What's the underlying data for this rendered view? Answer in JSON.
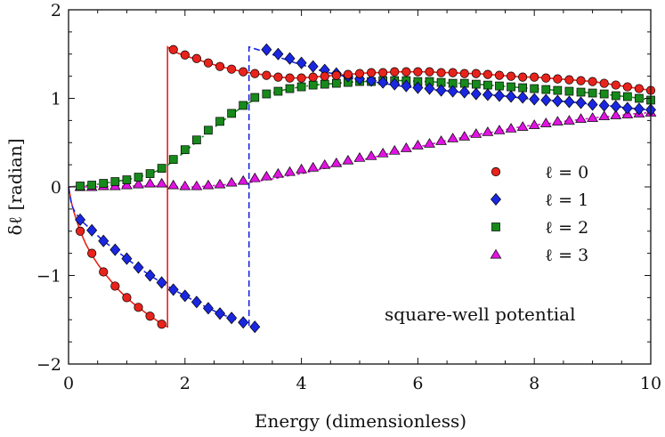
{
  "chart_data": {
    "type": "scatter",
    "xlabel": "Energy (dimensionless)",
    "ylabel": "δℓ [radian]",
    "xlim": [
      0,
      10
    ],
    "ylim": [
      -2,
      2
    ],
    "x_ticks": [
      "0",
      "2",
      "4",
      "6",
      "8",
      "10"
    ],
    "y_ticks": [
      "−2",
      "−1",
      "0",
      "1",
      "2"
    ],
    "grid": false,
    "legend_position": "right",
    "annotation": "square-well potential",
    "series": [
      {
        "name": "ℓ = 0",
        "marker": "circle",
        "color": "#e8231c",
        "line_style": "solid",
        "x": [
          0.2,
          0.4,
          0.6,
          0.8,
          1.0,
          1.2,
          1.4,
          1.6,
          1.8,
          2.0,
          2.2,
          2.4,
          2.6,
          2.8,
          3.0,
          3.2,
          3.4,
          3.6,
          3.8,
          4.0,
          4.2,
          4.4,
          4.6,
          4.8,
          5.0,
          5.2,
          5.4,
          5.6,
          5.8,
          6.0,
          6.2,
          6.4,
          6.6,
          6.8,
          7.0,
          7.2,
          7.4,
          7.6,
          7.8,
          8.0,
          8.2,
          8.4,
          8.6,
          8.8,
          9.0,
          9.2,
          9.4,
          9.6,
          9.8,
          10.0
        ],
        "y": [
          -0.5,
          -0.75,
          -0.96,
          -1.12,
          -1.25,
          -1.36,
          -1.46,
          -1.55,
          1.55,
          1.49,
          1.45,
          1.4,
          1.36,
          1.33,
          1.3,
          1.28,
          1.26,
          1.24,
          1.23,
          1.23,
          1.24,
          1.25,
          1.26,
          1.27,
          1.28,
          1.29,
          1.29,
          1.3,
          1.3,
          1.3,
          1.3,
          1.29,
          1.29,
          1.28,
          1.28,
          1.27,
          1.26,
          1.25,
          1.24,
          1.24,
          1.23,
          1.22,
          1.21,
          1.2,
          1.19,
          1.17,
          1.15,
          1.13,
          1.11,
          1.09
        ],
        "curve_x": [
          0,
          0.05,
          0.1,
          0.2,
          0.3,
          0.4,
          0.5,
          0.6,
          0.7,
          0.8,
          0.9,
          1.0,
          1.1,
          1.2,
          1.3,
          1.4,
          1.5,
          1.6,
          1.7,
          1.7,
          1.75,
          1.8,
          2.0,
          2.2,
          2.4,
          2.6,
          2.8,
          3.0,
          3.2,
          3.4,
          3.6,
          3.8,
          4.0,
          4.2,
          4.4,
          4.6,
          4.8,
          5.0,
          5.2,
          5.4,
          5.6,
          5.8,
          6.0,
          6.2,
          6.4,
          6.6,
          6.8,
          7.0,
          7.2,
          7.4,
          7.6,
          7.8,
          8.0,
          8.2,
          8.4,
          8.6,
          8.8,
          9.0,
          9.2,
          9.4,
          9.6,
          9.8,
          10.0
        ],
        "curve_y": [
          0,
          -0.18,
          -0.3,
          -0.5,
          -0.65,
          -0.77,
          -0.87,
          -0.96,
          -1.04,
          -1.12,
          -1.19,
          -1.25,
          -1.31,
          -1.36,
          -1.41,
          -1.46,
          -1.5,
          -1.55,
          -1.58,
          1.58,
          1.56,
          1.53,
          1.48,
          1.44,
          1.4,
          1.36,
          1.33,
          1.3,
          1.28,
          1.26,
          1.24,
          1.23,
          1.23,
          1.24,
          1.25,
          1.26,
          1.27,
          1.28,
          1.29,
          1.29,
          1.3,
          1.3,
          1.3,
          1.3,
          1.29,
          1.29,
          1.28,
          1.28,
          1.27,
          1.26,
          1.25,
          1.24,
          1.24,
          1.23,
          1.22,
          1.21,
          1.2,
          1.19,
          1.17,
          1.15,
          1.13,
          1.11,
          1.09
        ]
      },
      {
        "name": "ℓ = 1",
        "marker": "diamond",
        "color": "#1a27e0",
        "line_style": "dashed",
        "x": [
          0.2,
          0.4,
          0.6,
          0.8,
          1.0,
          1.2,
          1.4,
          1.6,
          1.8,
          2.0,
          2.2,
          2.4,
          2.6,
          2.8,
          3.0,
          3.2,
          3.4,
          3.6,
          3.8,
          4.0,
          4.2,
          4.4,
          4.6,
          4.8,
          5.0,
          5.2,
          5.4,
          5.6,
          5.8,
          6.0,
          6.2,
          6.4,
          6.6,
          6.8,
          7.0,
          7.2,
          7.4,
          7.6,
          7.8,
          8.0,
          8.2,
          8.4,
          8.6,
          8.8,
          9.0,
          9.2,
          9.4,
          9.6,
          9.8,
          10.0
        ],
        "y": [
          -0.37,
          -0.49,
          -0.61,
          -0.71,
          -0.81,
          -0.91,
          -1.0,
          -1.08,
          -1.16,
          -1.23,
          -1.3,
          -1.37,
          -1.43,
          -1.48,
          -1.53,
          -1.58,
          1.55,
          1.5,
          1.45,
          1.4,
          1.36,
          1.32,
          1.28,
          1.25,
          1.22,
          1.2,
          1.18,
          1.16,
          1.14,
          1.12,
          1.11,
          1.09,
          1.08,
          1.07,
          1.05,
          1.04,
          1.03,
          1.02,
          1.01,
          0.99,
          0.98,
          0.97,
          0.96,
          0.95,
          0.93,
          0.92,
          0.91,
          0.89,
          0.88,
          0.87
        ],
        "curve_x": [
          0,
          0.05,
          0.1,
          0.2,
          0.4,
          0.6,
          0.8,
          1.0,
          1.2,
          1.4,
          1.6,
          1.8,
          2.0,
          2.2,
          2.4,
          2.6,
          2.8,
          3.0,
          3.1,
          3.1,
          3.2,
          3.4,
          3.6,
          3.8,
          4.0,
          4.2,
          4.4,
          4.6,
          4.8,
          5.0,
          5.2,
          5.4,
          5.6,
          5.8,
          6.0,
          6.2,
          6.4,
          6.6,
          6.8,
          7.0,
          7.2,
          7.4,
          7.6,
          7.8,
          8.0,
          8.2,
          8.4,
          8.6,
          8.8,
          9.0,
          9.2,
          9.4,
          9.6,
          9.8,
          10.0
        ],
        "curve_y": [
          0,
          -0.2,
          -0.27,
          -0.37,
          -0.49,
          -0.61,
          -0.71,
          -0.81,
          -0.91,
          -1.0,
          -1.08,
          -1.16,
          -1.23,
          -1.3,
          -1.37,
          -1.43,
          -1.48,
          -1.53,
          -1.56,
          1.58,
          1.56,
          1.52,
          1.47,
          1.42,
          1.38,
          1.34,
          1.3,
          1.27,
          1.24,
          1.21,
          1.19,
          1.17,
          1.15,
          1.13,
          1.12,
          1.1,
          1.09,
          1.08,
          1.06,
          1.05,
          1.04,
          1.03,
          1.02,
          1.0,
          0.99,
          0.98,
          0.97,
          0.96,
          0.95,
          0.93,
          0.92,
          0.91,
          0.89,
          0.88,
          0.87
        ]
      },
      {
        "name": "ℓ = 2",
        "marker": "square",
        "color": "#178a1b",
        "line_style": "dashdot",
        "x": [
          0.2,
          0.4,
          0.6,
          0.8,
          1.0,
          1.2,
          1.4,
          1.6,
          1.8,
          2.0,
          2.2,
          2.4,
          2.6,
          2.8,
          3.0,
          3.2,
          3.4,
          3.6,
          3.8,
          4.0,
          4.2,
          4.4,
          4.6,
          4.8,
          5.0,
          5.2,
          5.4,
          5.6,
          5.8,
          6.0,
          6.2,
          6.4,
          6.6,
          6.8,
          7.0,
          7.2,
          7.4,
          7.6,
          7.8,
          8.0,
          8.2,
          8.4,
          8.6,
          8.8,
          9.0,
          9.2,
          9.4,
          9.6,
          9.8,
          10.0
        ],
        "y": [
          0.01,
          0.02,
          0.04,
          0.06,
          0.08,
          0.11,
          0.15,
          0.21,
          0.31,
          0.42,
          0.53,
          0.64,
          0.74,
          0.83,
          0.92,
          1.01,
          1.05,
          1.08,
          1.11,
          1.13,
          1.15,
          1.16,
          1.17,
          1.18,
          1.19,
          1.19,
          1.2,
          1.2,
          1.2,
          1.19,
          1.19,
          1.18,
          1.17,
          1.17,
          1.16,
          1.15,
          1.14,
          1.13,
          1.12,
          1.11,
          1.1,
          1.09,
          1.08,
          1.07,
          1.06,
          1.05,
          1.03,
          1.02,
          1.0,
          0.98
        ],
        "curve_x": [
          0,
          0.2,
          0.4,
          0.6,
          0.8,
          1.0,
          1.2,
          1.4,
          1.6,
          1.8,
          2.0,
          2.2,
          2.4,
          2.6,
          2.8,
          3.0,
          3.2,
          3.4,
          3.6,
          3.8,
          4.0,
          4.2,
          4.4,
          4.6,
          4.8,
          5.0,
          5.2,
          5.4,
          5.6,
          5.8,
          6.0,
          6.2,
          6.4,
          6.6,
          6.8,
          7.0,
          7.2,
          7.4,
          7.6,
          7.8,
          8.0,
          8.2,
          8.4,
          8.6,
          8.8,
          9.0,
          9.2,
          9.4,
          9.6,
          9.8,
          10.0
        ],
        "curve_y": [
          0,
          0.01,
          0.02,
          0.04,
          0.06,
          0.08,
          0.11,
          0.15,
          0.2,
          0.29,
          0.4,
          0.51,
          0.62,
          0.72,
          0.82,
          0.91,
          0.99,
          1.04,
          1.08,
          1.11,
          1.13,
          1.15,
          1.16,
          1.17,
          1.18,
          1.19,
          1.19,
          1.2,
          1.2,
          1.2,
          1.19,
          1.19,
          1.18,
          1.17,
          1.17,
          1.16,
          1.15,
          1.14,
          1.13,
          1.12,
          1.11,
          1.1,
          1.09,
          1.08,
          1.07,
          1.06,
          1.05,
          1.03,
          1.02,
          1.0,
          0.98
        ]
      },
      {
        "name": "ℓ = 3",
        "marker": "triangle",
        "color": "#e014e0",
        "line_style": "dotted",
        "x": [
          0.2,
          0.4,
          0.6,
          0.8,
          1.0,
          1.2,
          1.4,
          1.6,
          1.8,
          2.0,
          2.2,
          2.4,
          2.6,
          2.8,
          3.0,
          3.2,
          3.4,
          3.6,
          3.8,
          4.0,
          4.2,
          4.4,
          4.6,
          4.8,
          5.0,
          5.2,
          5.4,
          5.6,
          5.8,
          6.0,
          6.2,
          6.4,
          6.6,
          6.8,
          7.0,
          7.2,
          7.4,
          7.6,
          7.8,
          8.0,
          8.2,
          8.4,
          8.6,
          8.8,
          9.0,
          9.2,
          9.4,
          9.6,
          9.8,
          10.0
        ],
        "y": [
          0.0,
          0.0,
          0.01,
          0.01,
          0.02,
          0.03,
          0.04,
          0.04,
          0.02,
          0.01,
          0.01,
          0.02,
          0.03,
          0.05,
          0.07,
          0.1,
          0.12,
          0.15,
          0.17,
          0.2,
          0.22,
          0.25,
          0.27,
          0.3,
          0.33,
          0.35,
          0.38,
          0.41,
          0.44,
          0.47,
          0.49,
          0.52,
          0.55,
          0.57,
          0.6,
          0.62,
          0.64,
          0.66,
          0.68,
          0.7,
          0.72,
          0.74,
          0.75,
          0.77,
          0.78,
          0.8,
          0.81,
          0.82,
          0.83,
          0.84
        ],
        "curve_x": [
          0,
          0.2,
          0.4,
          0.6,
          0.8,
          1.0,
          1.2,
          1.4,
          1.6,
          1.8,
          2.0,
          2.2,
          2.4,
          2.6,
          2.8,
          3.0,
          3.2,
          3.4,
          3.6,
          3.8,
          4.0,
          4.2,
          4.4,
          4.6,
          4.8,
          5.0,
          5.2,
          5.4,
          5.6,
          5.8,
          6.0,
          6.2,
          6.4,
          6.6,
          6.8,
          7.0,
          7.2,
          7.4,
          7.6,
          7.8,
          8.0,
          8.2,
          8.4,
          8.6,
          8.8,
          9.0,
          9.2,
          9.4,
          9.6,
          9.8,
          10.0
        ],
        "curve_y": [
          0,
          0.0,
          0.0,
          0.0,
          0.01,
          0.01,
          0.01,
          0.01,
          0.01,
          0.0,
          0.0,
          0.0,
          0.01,
          0.02,
          0.03,
          0.04,
          0.06,
          0.08,
          0.1,
          0.13,
          0.15,
          0.18,
          0.21,
          0.24,
          0.27,
          0.3,
          0.33,
          0.36,
          0.39,
          0.42,
          0.45,
          0.48,
          0.51,
          0.54,
          0.56,
          0.59,
          0.61,
          0.63,
          0.66,
          0.68,
          0.7,
          0.71,
          0.73,
          0.75,
          0.76,
          0.78,
          0.79,
          0.8,
          0.82,
          0.83,
          0.84
        ]
      }
    ]
  }
}
